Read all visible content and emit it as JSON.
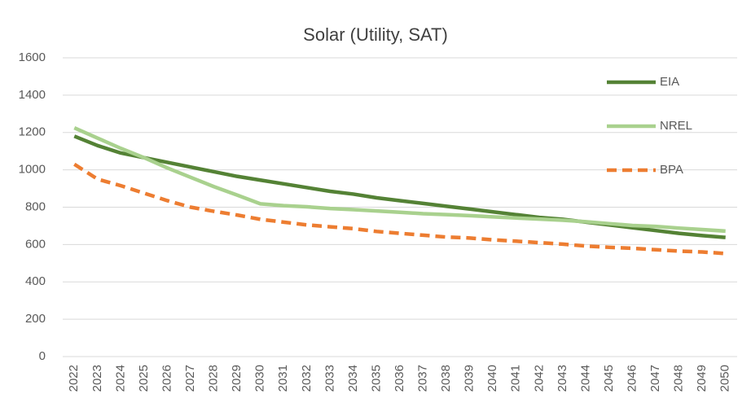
{
  "chart_data": {
    "type": "line",
    "title": "Solar (Utility, SAT)",
    "categories": [
      "2022",
      "2023",
      "2024",
      "2025",
      "2026",
      "2027",
      "2028",
      "2029",
      "2030",
      "2031",
      "2032",
      "2033",
      "2034",
      "2035",
      "2036",
      "2037",
      "2038",
      "2039",
      "2040",
      "2041",
      "2042",
      "2043",
      "2044",
      "2045",
      "2046",
      "2047",
      "2048",
      "2049",
      "2050"
    ],
    "series": [
      {
        "name": "EIA",
        "color": "#548235",
        "dashed": false,
        "values": [
          1180,
          1130,
          1090,
          1065,
          1040,
          1015,
          990,
          965,
          945,
          925,
          905,
          885,
          870,
          850,
          835,
          820,
          805,
          790,
          775,
          760,
          745,
          735,
          720,
          705,
          690,
          675,
          660,
          648,
          638
        ]
      },
      {
        "name": "NREL",
        "color": "#a9d18e",
        "dashed": false,
        "values": [
          1225,
          1170,
          1115,
          1065,
          1010,
          960,
          910,
          865,
          818,
          808,
          802,
          793,
          787,
          780,
          773,
          765,
          760,
          755,
          748,
          742,
          736,
          730,
          722,
          712,
          702,
          697,
          688,
          680,
          672
        ]
      },
      {
        "name": "BPA",
        "color": "#ed7d31",
        "dashed": true,
        "values": [
          1030,
          950,
          915,
          875,
          835,
          800,
          778,
          758,
          735,
          720,
          705,
          695,
          685,
          670,
          660,
          650,
          640,
          635,
          625,
          618,
          610,
          602,
          592,
          585,
          580,
          572,
          565,
          560,
          552
        ]
      }
    ],
    "ylim": [
      0,
      1600
    ],
    "yticks": [
      0,
      200,
      400,
      600,
      800,
      1000,
      1200,
      1400,
      1600
    ],
    "grid": true,
    "legend": "top-right"
  }
}
